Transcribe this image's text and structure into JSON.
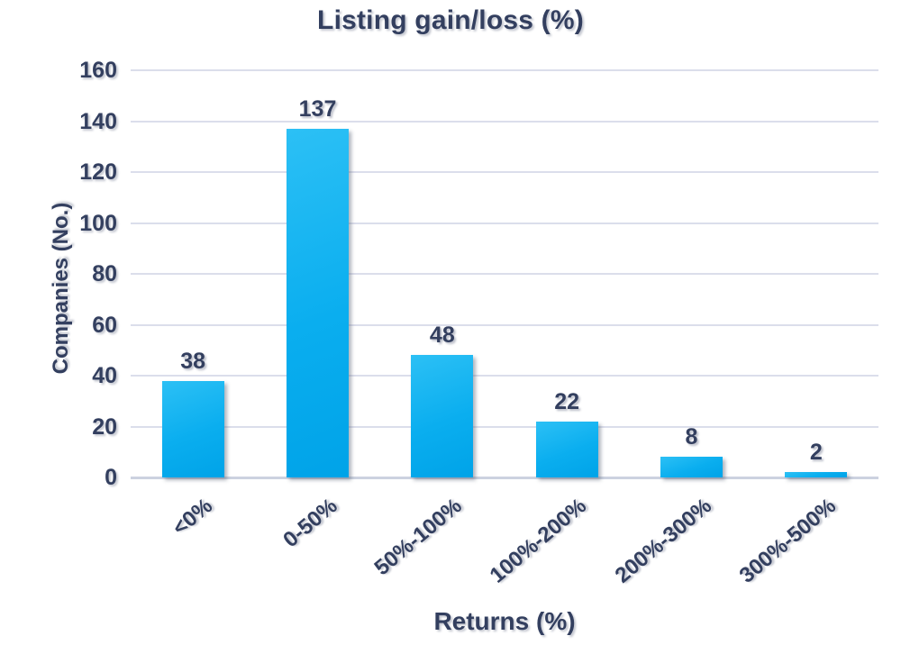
{
  "chart_data": {
    "type": "bar",
    "title": "Listing gain/loss (%)",
    "categories": [
      "<0%",
      "0-50%",
      "50%-100%",
      "100%-200%",
      "200%-300%",
      "300%-500%"
    ],
    "values": [
      38,
      137,
      48,
      22,
      8,
      2
    ],
    "xlabel": "Returns (%)",
    "ylabel": "Companies (No.)",
    "ylim": [
      0,
      160
    ],
    "yticks": [
      0,
      20,
      40,
      60,
      80,
      100,
      120,
      140,
      160
    ],
    "grid": true,
    "legend": false,
    "colors": {
      "bar_top": "#2cc0f5",
      "bar_mid": "#0aaeef",
      "bar_bottom": "#00a3e8",
      "text": "#333f5f",
      "gridline": "#dbdeeb",
      "axis_line": "#ccd2e0"
    }
  }
}
